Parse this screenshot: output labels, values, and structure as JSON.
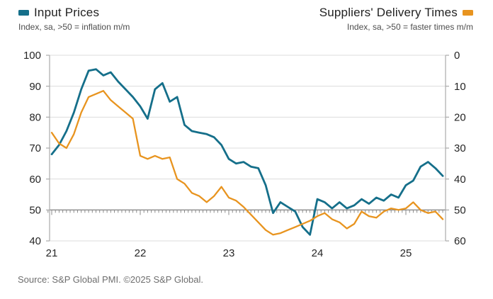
{
  "legend_left": {
    "label": "Input Prices",
    "subtitle": "Index, sa, >50 = inflation m/m",
    "color": "#156f8a"
  },
  "legend_right": {
    "label": "Suppliers' Delivery Times",
    "subtitle": "Index, sa, >50 = faster times m/m",
    "color": "#e8941f"
  },
  "source": "Source: S&P Global PMI. ©2025 S&P Global.",
  "chart_data": {
    "type": "line",
    "title": "",
    "frequency": "monthly",
    "x_start": "2021-01",
    "x_end": "2025-06",
    "x_tick_labels": [
      "21",
      "22",
      "23",
      "24",
      "25"
    ],
    "grid": true,
    "baseline_value": 50,
    "left_axis": {
      "name": "Input Prices",
      "min": 40,
      "max": 100,
      "ticks": [
        100,
        90,
        80,
        70,
        60,
        50,
        40
      ]
    },
    "right_axis": {
      "name": "Suppliers' Delivery Times",
      "min": 0,
      "max": 60,
      "inverted": true,
      "ticks": [
        0,
        10,
        20,
        30,
        40,
        50,
        60
      ]
    },
    "series": [
      {
        "name": "Input Prices",
        "axis": "left",
        "color": "#156f8a",
        "values": [
          68,
          71,
          75.5,
          81.5,
          89,
          95,
          95.5,
          93.5,
          94.5,
          91.5,
          89,
          86.5,
          83.5,
          79.5,
          89,
          91,
          85,
          86.5,
          77.5,
          75.5,
          75,
          74.5,
          73.5,
          71,
          66.5,
          65,
          65.5,
          64,
          63.5,
          58,
          49,
          52.5,
          51,
          49.5,
          44.5,
          42,
          53.5,
          52.5,
          50.5,
          52.5,
          50.5,
          51.5,
          53.5,
          52,
          54,
          53,
          55,
          54,
          58,
          59.5,
          64,
          65.5,
          63.5,
          61
        ]
      },
      {
        "name": "Suppliers' Delivery Times",
        "axis": "right",
        "color": "#e8941f",
        "values": [
          25,
          28.5,
          30,
          25.5,
          18.5,
          13.5,
          12.5,
          11.5,
          14.5,
          16.5,
          18.5,
          20.5,
          32.5,
          33.5,
          32.5,
          33.5,
          33,
          40,
          41.5,
          44.5,
          45.5,
          47.5,
          45.5,
          42.5,
          46,
          47,
          49,
          51.5,
          54,
          56.5,
          58,
          57.5,
          56.5,
          55.5,
          54.5,
          53.5,
          52,
          51,
          53,
          54,
          56,
          54.5,
          50.5,
          52,
          52.5,
          50.5,
          49.5,
          50,
          49.5,
          47.5,
          50,
          51,
          50.5,
          53
        ]
      }
    ]
  }
}
